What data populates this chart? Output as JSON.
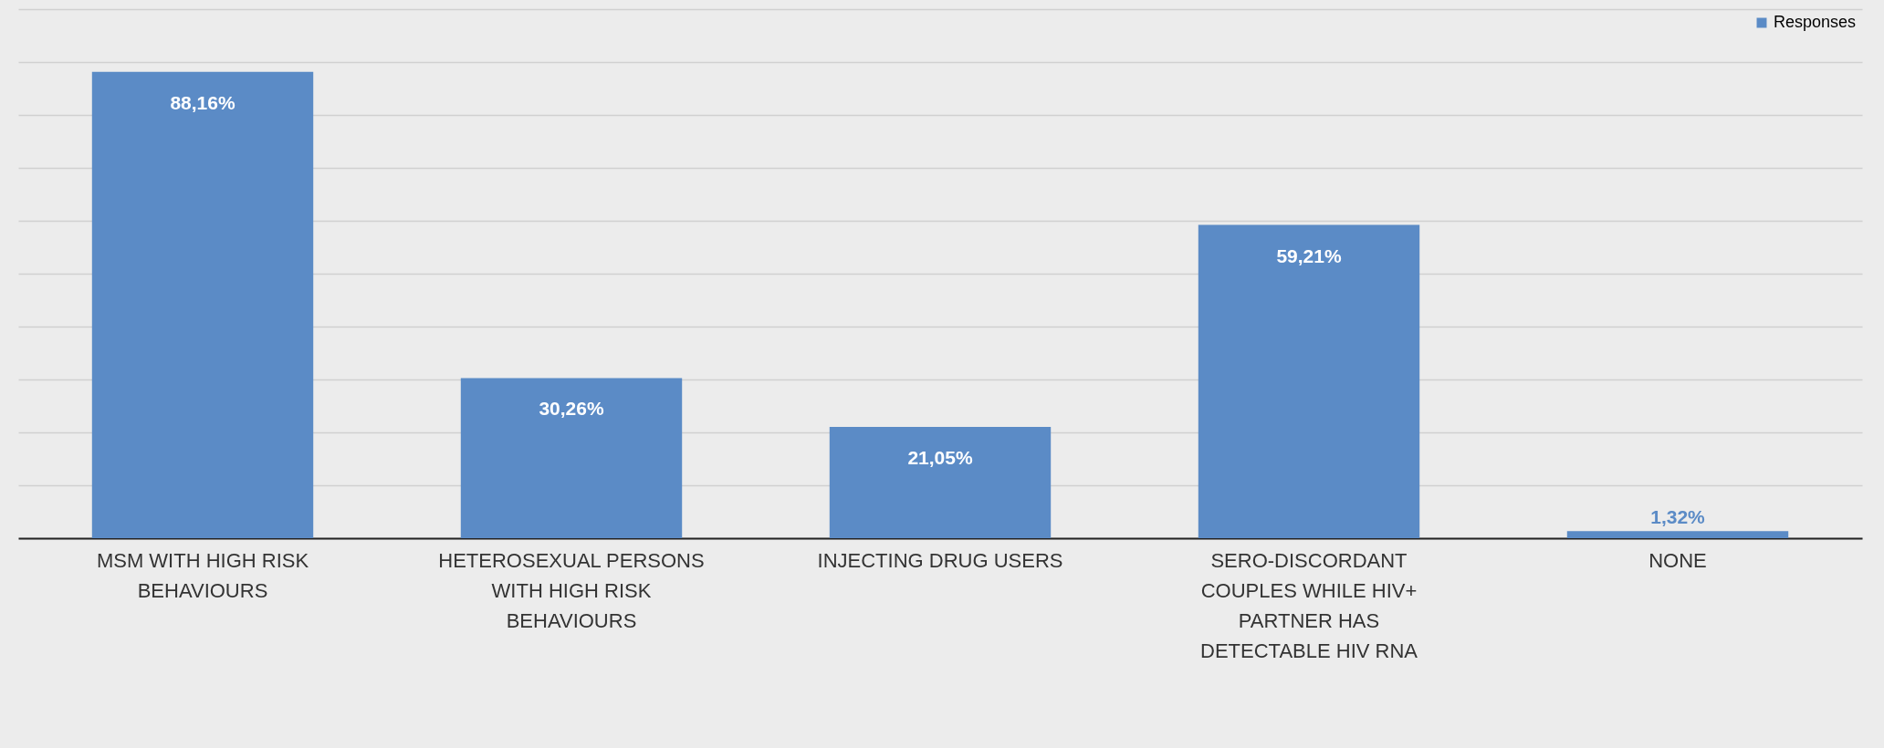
{
  "chart_data": {
    "type": "bar",
    "categories": [
      "MSM WITH HIGH RISK BEHAVIOURS",
      "HETEROSEXUAL PERSONS WITH HIGH RISK BEHAVIOURS",
      "INJECTING DRUG USERS",
      "SERO-DISCORDANT COUPLES WHILE HIV+ PARTNER HAS DETECTABLE HIV RNA",
      "NONE"
    ],
    "series": [
      {
        "name": "Responses",
        "color": "#5b8bc6",
        "values": [
          88.16,
          30.26,
          21.05,
          59.21,
          1.32
        ],
        "value_labels": [
          "88,16%",
          "30,26%",
          "21,05%",
          "59,21%",
          "1,32%"
        ]
      }
    ],
    "ylim": [
      0,
      100
    ],
    "yticks": [
      {
        "value": 0,
        "label": null
      },
      {
        "value": 10,
        "label": null
      },
      {
        "value": 20,
        "label": null
      },
      {
        "value": 30,
        "label": null
      },
      {
        "value": 40,
        "label": null
      },
      {
        "value": 50,
        "label": null
      },
      {
        "value": 60,
        "label": null
      },
      {
        "value": 70,
        "label": null
      },
      {
        "value": 80,
        "label": null
      },
      {
        "value": 90,
        "label": null
      },
      {
        "value": 100,
        "label": null
      }
    ],
    "grid": "y",
    "tick_labels": "x",
    "legend": "top right"
  }
}
